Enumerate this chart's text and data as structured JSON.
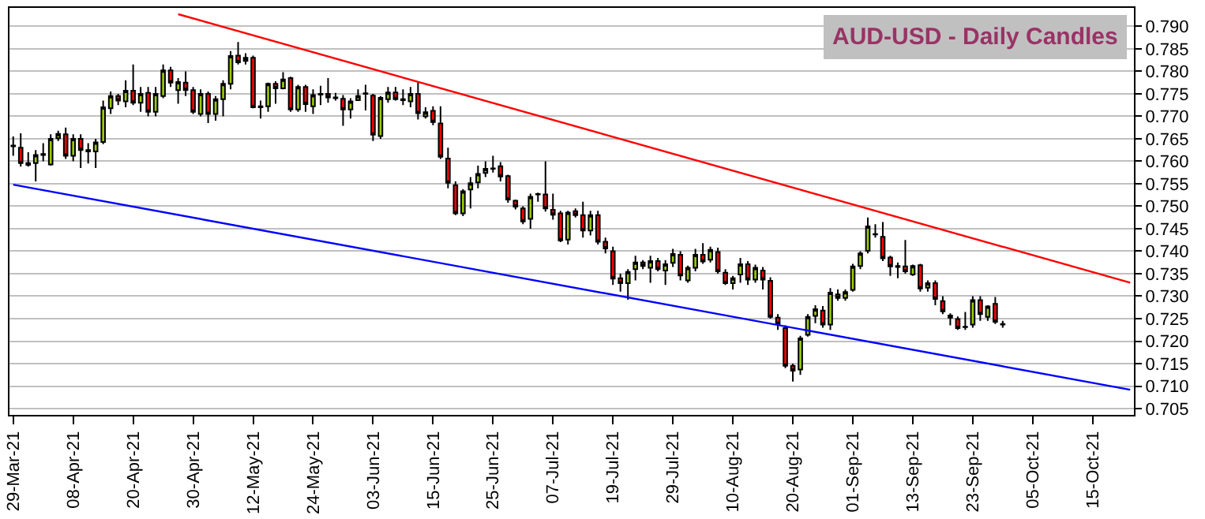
{
  "chart_data": {
    "type": "candlestick",
    "title": "AUD-USD - Daily Candles",
    "categories": [
      "29-Mar-21",
      null,
      null,
      null,
      null,
      null,
      null,
      null,
      "08-Apr-21",
      null,
      null,
      null,
      null,
      null,
      null,
      null,
      "20-Apr-21",
      null,
      null,
      null,
      null,
      null,
      null,
      null,
      "30-Apr-21",
      null,
      null,
      null,
      null,
      null,
      null,
      null,
      "12-May-21",
      null,
      null,
      null,
      null,
      null,
      null,
      null,
      "24-May-21",
      null,
      null,
      null,
      null,
      null,
      null,
      null,
      "03-Jun-21",
      null,
      null,
      null,
      null,
      null,
      null,
      null,
      "15-Jun-21",
      null,
      null,
      null,
      null,
      null,
      null,
      null,
      "25-Jun-21",
      null,
      null,
      null,
      null,
      null,
      null,
      null,
      "07-Jul-21",
      null,
      null,
      null,
      null,
      null,
      null,
      null,
      "19-Jul-21",
      null,
      null,
      null,
      null,
      null,
      null,
      null,
      "29-Jul-21",
      null,
      null,
      null,
      null,
      null,
      null,
      null,
      "10-Aug-21",
      null,
      null,
      null,
      null,
      null,
      null,
      null,
      "20-Aug-21",
      null,
      null,
      null,
      null,
      null,
      null,
      null,
      "01-Sep-21",
      null,
      null,
      null,
      null,
      null,
      null,
      null,
      "13-Sep-21",
      null,
      null,
      null,
      null,
      null,
      null,
      null,
      "23-Sep-21",
      null,
      null,
      null,
      null,
      null,
      null,
      null,
      "05-Oct-21",
      null,
      null,
      null,
      null,
      null,
      null,
      null,
      "15-Oct-21",
      null,
      null,
      null,
      null,
      null
    ],
    "ohlc": [
      [
        0.7635,
        0.7655,
        0.7612,
        0.7633
      ],
      [
        0.763,
        0.7662,
        0.7588,
        0.7596
      ],
      [
        0.7596,
        0.762,
        0.7588,
        0.7592
      ],
      [
        0.7596,
        0.7625,
        0.7555,
        0.7614
      ],
      [
        0.7614,
        0.764,
        0.76,
        0.7616
      ],
      [
        0.7593,
        0.766,
        0.759,
        0.765
      ],
      [
        0.7651,
        0.7668,
        0.7645,
        0.7661
      ],
      [
        0.766,
        0.7675,
        0.7605,
        0.7612
      ],
      [
        0.7612,
        0.766,
        0.76,
        0.765
      ],
      [
        0.765,
        0.766,
        0.7585,
        0.7625
      ],
      [
        0.7625,
        0.764,
        0.7595,
        0.7622
      ],
      [
        0.7622,
        0.765,
        0.7585,
        0.7642
      ],
      [
        0.7643,
        0.7735,
        0.7638,
        0.772
      ],
      [
        0.7718,
        0.7755,
        0.7705,
        0.7745
      ],
      [
        0.7745,
        0.775,
        0.7725,
        0.7735
      ],
      [
        0.7733,
        0.778,
        0.772,
        0.7757
      ],
      [
        0.7757,
        0.7815,
        0.7725,
        0.773
      ],
      [
        0.773,
        0.7765,
        0.771,
        0.775
      ],
      [
        0.7752,
        0.7765,
        0.77,
        0.771
      ],
      [
        0.771,
        0.7765,
        0.77,
        0.775
      ],
      [
        0.7745,
        0.7815,
        0.774,
        0.7802
      ],
      [
        0.7802,
        0.781,
        0.7765,
        0.7775
      ],
      [
        0.7758,
        0.7785,
        0.7728,
        0.7776
      ],
      [
        0.7775,
        0.78,
        0.7745,
        0.7758
      ],
      [
        0.7758,
        0.7765,
        0.7705,
        0.771
      ],
      [
        0.7705,
        0.776,
        0.77,
        0.775
      ],
      [
        0.775,
        0.7755,
        0.7685,
        0.7705
      ],
      [
        0.7705,
        0.7745,
        0.769,
        0.7738
      ],
      [
        0.7738,
        0.778,
        0.77,
        0.7772
      ],
      [
        0.7772,
        0.7845,
        0.776,
        0.7834
      ],
      [
        0.7835,
        0.7865,
        0.7815,
        0.782
      ],
      [
        0.7823,
        0.784,
        0.7815,
        0.783
      ],
      [
        0.783,
        0.7835,
        0.7718,
        0.772
      ],
      [
        0.7722,
        0.7735,
        0.7695,
        0.772
      ],
      [
        0.7722,
        0.7775,
        0.771,
        0.7772
      ],
      [
        0.7772,
        0.7778,
        0.7728,
        0.7762
      ],
      [
        0.7762,
        0.7798,
        0.776,
        0.7782
      ],
      [
        0.7785,
        0.7788,
        0.771,
        0.7715
      ],
      [
        0.7715,
        0.777,
        0.771,
        0.7765
      ],
      [
        0.7765,
        0.777,
        0.771,
        0.7727
      ],
      [
        0.7722,
        0.776,
        0.7705,
        0.7747
      ],
      [
        0.775,
        0.7768,
        0.7725,
        0.7748
      ],
      [
        0.775,
        0.7785,
        0.773,
        0.7742
      ],
      [
        0.7742,
        0.7752,
        0.7735,
        0.774
      ],
      [
        0.7739,
        0.7747,
        0.7679,
        0.7715
      ],
      [
        0.7715,
        0.774,
        0.7695,
        0.7733
      ],
      [
        0.7736,
        0.776,
        0.7735,
        0.7745
      ],
      [
        0.775,
        0.777,
        0.7713,
        0.7751
      ],
      [
        0.7746,
        0.775,
        0.7645,
        0.7659
      ],
      [
        0.7656,
        0.7745,
        0.765,
        0.7741
      ],
      [
        0.7738,
        0.7765,
        0.773,
        0.7753
      ],
      [
        0.7753,
        0.7765,
        0.7735,
        0.7738
      ],
      [
        0.7738,
        0.776,
        0.7725,
        0.7736
      ],
      [
        0.7733,
        0.7765,
        0.772,
        0.775
      ],
      [
        0.775,
        0.7775,
        0.7693,
        0.7707
      ],
      [
        0.77,
        0.772,
        0.7695,
        0.7709
      ],
      [
        0.7712,
        0.7722,
        0.768,
        0.7687
      ],
      [
        0.7684,
        0.7722,
        0.7605,
        0.761
      ],
      [
        0.7606,
        0.763,
        0.754,
        0.7552
      ],
      [
        0.7547,
        0.7555,
        0.748,
        0.7484
      ],
      [
        0.7484,
        0.7538,
        0.7478,
        0.7533
      ],
      [
        0.7537,
        0.7565,
        0.7495,
        0.7551
      ],
      [
        0.7553,
        0.759,
        0.754,
        0.7572
      ],
      [
        0.7574,
        0.76,
        0.7565,
        0.7583
      ],
      [
        0.7584,
        0.7612,
        0.7575,
        0.7583
      ],
      [
        0.7589,
        0.7598,
        0.7555,
        0.7566
      ],
      [
        0.7567,
        0.757,
        0.7508,
        0.7515
      ],
      [
        0.7512,
        0.7515,
        0.7493,
        0.7499
      ],
      [
        0.7495,
        0.75,
        0.746,
        0.7466
      ],
      [
        0.7472,
        0.7528,
        0.745,
        0.7521
      ],
      [
        0.7526,
        0.753,
        0.751,
        0.7527
      ],
      [
        0.7526,
        0.76,
        0.7488,
        0.7495
      ],
      [
        0.7492,
        0.7528,
        0.747,
        0.7481
      ],
      [
        0.7484,
        0.749,
        0.742,
        0.7424
      ],
      [
        0.7426,
        0.749,
        0.7415,
        0.7486
      ],
      [
        0.7489,
        0.7495,
        0.7475,
        0.748
      ],
      [
        0.748,
        0.751,
        0.743,
        0.7446
      ],
      [
        0.7446,
        0.749,
        0.7435,
        0.748
      ],
      [
        0.748,
        0.749,
        0.7415,
        0.7421
      ],
      [
        0.7421,
        0.743,
        0.7395,
        0.7406
      ],
      [
        0.74,
        0.741,
        0.7325,
        0.7339
      ],
      [
        0.734,
        0.735,
        0.731,
        0.7329
      ],
      [
        0.7329,
        0.736,
        0.7292,
        0.7354
      ],
      [
        0.736,
        0.739,
        0.7335,
        0.7375
      ],
      [
        0.7375,
        0.738,
        0.736,
        0.7367
      ],
      [
        0.7363,
        0.739,
        0.733,
        0.7378
      ],
      [
        0.7378,
        0.7385,
        0.7355,
        0.736
      ],
      [
        0.7357,
        0.738,
        0.7325,
        0.7371
      ],
      [
        0.7374,
        0.7405,
        0.7365,
        0.7394
      ],
      [
        0.7392,
        0.74,
        0.7335,
        0.7346
      ],
      [
        0.7335,
        0.7368,
        0.733,
        0.7363
      ],
      [
        0.7363,
        0.7405,
        0.7355,
        0.7392
      ],
      [
        0.7392,
        0.7418,
        0.7372,
        0.7377
      ],
      [
        0.7381,
        0.741,
        0.7375,
        0.7403
      ],
      [
        0.7398,
        0.7408,
        0.735,
        0.7355
      ],
      [
        0.7352,
        0.736,
        0.7325,
        0.7329
      ],
      [
        0.7329,
        0.7345,
        0.7315,
        0.734
      ],
      [
        0.7348,
        0.7385,
        0.733,
        0.7371
      ],
      [
        0.7371,
        0.7378,
        0.7325,
        0.7337
      ],
      [
        0.7337,
        0.737,
        0.733,
        0.7363
      ],
      [
        0.7357,
        0.7365,
        0.7315,
        0.7337
      ],
      [
        0.7334,
        0.7342,
        0.725,
        0.7254
      ],
      [
        0.7252,
        0.726,
        0.7225,
        0.7238
      ],
      [
        0.7229,
        0.7235,
        0.714,
        0.7145
      ],
      [
        0.7145,
        0.715,
        0.711,
        0.7134
      ],
      [
        0.7137,
        0.7212,
        0.7125,
        0.7206
      ],
      [
        0.7214,
        0.726,
        0.721,
        0.7254
      ],
      [
        0.7256,
        0.728,
        0.724,
        0.7271
      ],
      [
        0.7268,
        0.7278,
        0.723,
        0.7237
      ],
      [
        0.7237,
        0.7318,
        0.7225,
        0.7308
      ],
      [
        0.7304,
        0.7315,
        0.729,
        0.7296
      ],
      [
        0.7296,
        0.7315,
        0.729,
        0.7309
      ],
      [
        0.7314,
        0.7372,
        0.731,
        0.7366
      ],
      [
        0.7367,
        0.74,
        0.736,
        0.7395
      ],
      [
        0.7401,
        0.7475,
        0.7395,
        0.7455
      ],
      [
        0.7438,
        0.746,
        0.743,
        0.7437
      ],
      [
        0.7432,
        0.7465,
        0.7378,
        0.7384
      ],
      [
        0.7386,
        0.739,
        0.7345,
        0.7366
      ],
      [
        0.7367,
        0.7375,
        0.734,
        0.7365
      ],
      [
        0.7366,
        0.7425,
        0.735,
        0.7355
      ],
      [
        0.7348,
        0.737,
        0.7345,
        0.7367
      ],
      [
        0.7369,
        0.7372,
        0.731,
        0.7317
      ],
      [
        0.7319,
        0.7335,
        0.731,
        0.7329
      ],
      [
        0.7329,
        0.7335,
        0.728,
        0.7294
      ],
      [
        0.7289,
        0.73,
        0.726,
        0.7266
      ],
      [
        0.7257,
        0.7262,
        0.7235,
        0.7252
      ],
      [
        0.7249,
        0.7255,
        0.7225,
        0.7229
      ],
      [
        0.7232,
        0.7265,
        0.7225,
        0.7231
      ],
      [
        0.7237,
        0.73,
        0.723,
        0.7291
      ],
      [
        0.7291,
        0.73,
        0.7245,
        0.726
      ],
      [
        0.7254,
        0.728,
        0.7245,
        0.7277
      ],
      [
        0.7283,
        0.7298,
        0.7238,
        0.7243
      ],
      [
        0.7238,
        0.7245,
        0.723,
        0.7237
      ],
      null,
      null,
      null,
      null,
      null,
      null,
      null,
      null,
      null,
      null,
      null,
      null,
      null,
      null,
      null,
      null,
      null
    ],
    "series": [
      {
        "type": "line",
        "color": "#ff0000",
        "values": [
          null,
          null,
          null,
          null,
          null,
          null,
          null,
          null,
          null,
          null,
          null,
          null,
          null,
          null,
          null,
          null,
          null,
          null,
          null,
          null,
          null,
          null,
          0.7927,
          null,
          null,
          null,
          null,
          null,
          null,
          null,
          null,
          null,
          null,
          null,
          null,
          null,
          null,
          null,
          null,
          null,
          null,
          null,
          null,
          null,
          null,
          null,
          null,
          null,
          null,
          null,
          null,
          null,
          null,
          null,
          null,
          null,
          null,
          null,
          null,
          null,
          null,
          null,
          null,
          null,
          null,
          null,
          null,
          null,
          null,
          null,
          null,
          null,
          null,
          null,
          null,
          null,
          null,
          null,
          null,
          null,
          null,
          null,
          null,
          null,
          null,
          null,
          null,
          null,
          null,
          null,
          null,
          null,
          null,
          null,
          null,
          null,
          null,
          null,
          null,
          null,
          null,
          null,
          null,
          null,
          null,
          null,
          null,
          null,
          null,
          null,
          null,
          null,
          null,
          null,
          null,
          null,
          null,
          null,
          null,
          null,
          null,
          null,
          null,
          null,
          null,
          null,
          null,
          null,
          null,
          null,
          null,
          null,
          null,
          null,
          null,
          null,
          null,
          null,
          null,
          null,
          null,
          null,
          null,
          null,
          null,
          null,
          null,
          null,
          null,
          0.733
        ]
      },
      {
        "type": "line",
        "color": "#0000ff",
        "values": [
          0.7548,
          null,
          null,
          null,
          null,
          null,
          null,
          null,
          null,
          null,
          null,
          null,
          null,
          null,
          null,
          null,
          null,
          null,
          null,
          null,
          null,
          null,
          null,
          null,
          null,
          null,
          null,
          null,
          null,
          null,
          null,
          null,
          null,
          null,
          null,
          null,
          null,
          null,
          null,
          null,
          null,
          null,
          null,
          null,
          null,
          null,
          null,
          null,
          null,
          null,
          null,
          null,
          null,
          null,
          null,
          null,
          null,
          null,
          null,
          null,
          null,
          null,
          null,
          null,
          null,
          null,
          null,
          null,
          null,
          null,
          null,
          null,
          null,
          null,
          null,
          null,
          null,
          null,
          null,
          null,
          null,
          null,
          null,
          null,
          null,
          null,
          null,
          null,
          null,
          null,
          null,
          null,
          null,
          null,
          null,
          null,
          null,
          null,
          null,
          null,
          null,
          null,
          null,
          null,
          null,
          null,
          null,
          null,
          null,
          null,
          null,
          null,
          null,
          null,
          null,
          null,
          null,
          null,
          null,
          null,
          null,
          null,
          null,
          null,
          null,
          null,
          null,
          null,
          null,
          null,
          null,
          null,
          null,
          null,
          null,
          null,
          null,
          null,
          null,
          null,
          null,
          null,
          null,
          null,
          null,
          null,
          null,
          null,
          null,
          0.7092
        ]
      }
    ],
    "ylim": [
      0.7036,
      0.7941
    ],
    "yticks": [
      {
        "value": 0.705,
        "label": "0.705"
      },
      {
        "value": 0.71,
        "label": "0.710"
      },
      {
        "value": 0.715,
        "label": "0.715"
      },
      {
        "value": 0.72,
        "label": "0.720"
      },
      {
        "value": 0.725,
        "label": "0.725"
      },
      {
        "value": 0.73,
        "label": "0.730"
      },
      {
        "value": 0.735,
        "label": "0.735"
      },
      {
        "value": 0.74,
        "label": "0.740"
      },
      {
        "value": 0.745,
        "label": "0.745"
      },
      {
        "value": 0.75,
        "label": "0.750"
      },
      {
        "value": 0.755,
        "label": "0.755"
      },
      {
        "value": 0.76,
        "label": "0.760"
      },
      {
        "value": 0.765,
        "label": "0.765"
      },
      {
        "value": 0.77,
        "label": "0.770"
      },
      {
        "value": 0.775,
        "label": "0.775"
      },
      {
        "value": 0.78,
        "label": "0.780"
      },
      {
        "value": 0.785,
        "label": "0.785"
      },
      {
        "value": 0.79,
        "label": "0.790"
      }
    ],
    "grid": "y"
  }
}
